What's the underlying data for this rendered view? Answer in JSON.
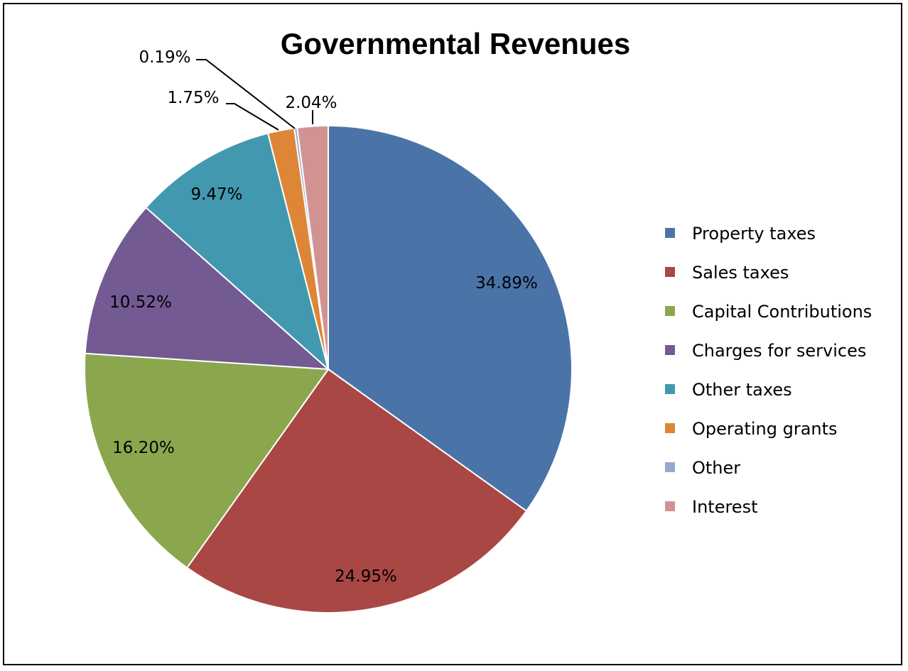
{
  "chart_data": {
    "type": "pie",
    "title": "Governmental Revenues",
    "legend_position": "right",
    "slices": [
      {
        "name": "Property taxes",
        "value": 34.89,
        "label": "34.89%",
        "color": "#4A74A8"
      },
      {
        "name": "Sales taxes",
        "value": 24.95,
        "label": "24.95%",
        "color": "#A94744"
      },
      {
        "name": "Capital Contributions",
        "value": 16.2,
        "label": "16.20%",
        "color": "#8AA74E"
      },
      {
        "name": "Charges for services",
        "value": 10.52,
        "label": "10.52%",
        "color": "#735A93"
      },
      {
        "name": "Other taxes",
        "value": 9.47,
        "label": "9.47%",
        "color": "#4299AF"
      },
      {
        "name": "Operating grants",
        "value": 1.75,
        "label": "1.75%",
        "color": "#DD8637"
      },
      {
        "name": "Other",
        "value": 0.19,
        "label": "0.19%",
        "color": "#93A9CF"
      },
      {
        "name": "Interest",
        "value": 2.04,
        "label": "2.04%",
        "color": "#D19392"
      }
    ]
  }
}
